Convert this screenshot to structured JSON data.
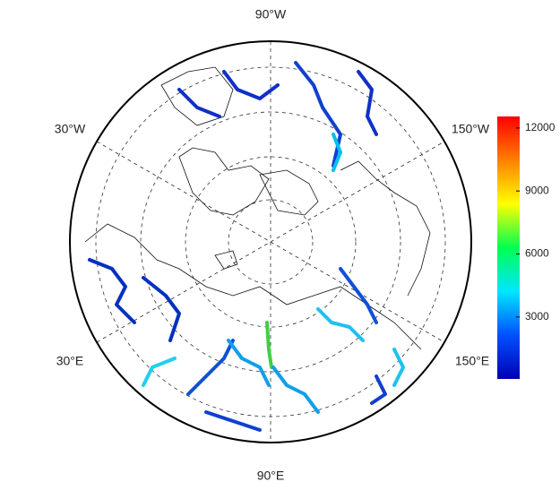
{
  "map": {
    "labels": [
      "90°W",
      "30°W",
      "150°W",
      "30°E",
      "150°E",
      "90°E"
    ],
    "colorbar": {
      "range": [
        50,
        12550
      ],
      "ticks": [
        3000,
        6000,
        9000,
        12000
      ],
      "colors": [
        "#0000b4",
        "#0050ff",
        "#00e6ff",
        "#00ff50",
        "#ffff00",
        "#ff8000",
        "#ff0000"
      ]
    }
  }
}
